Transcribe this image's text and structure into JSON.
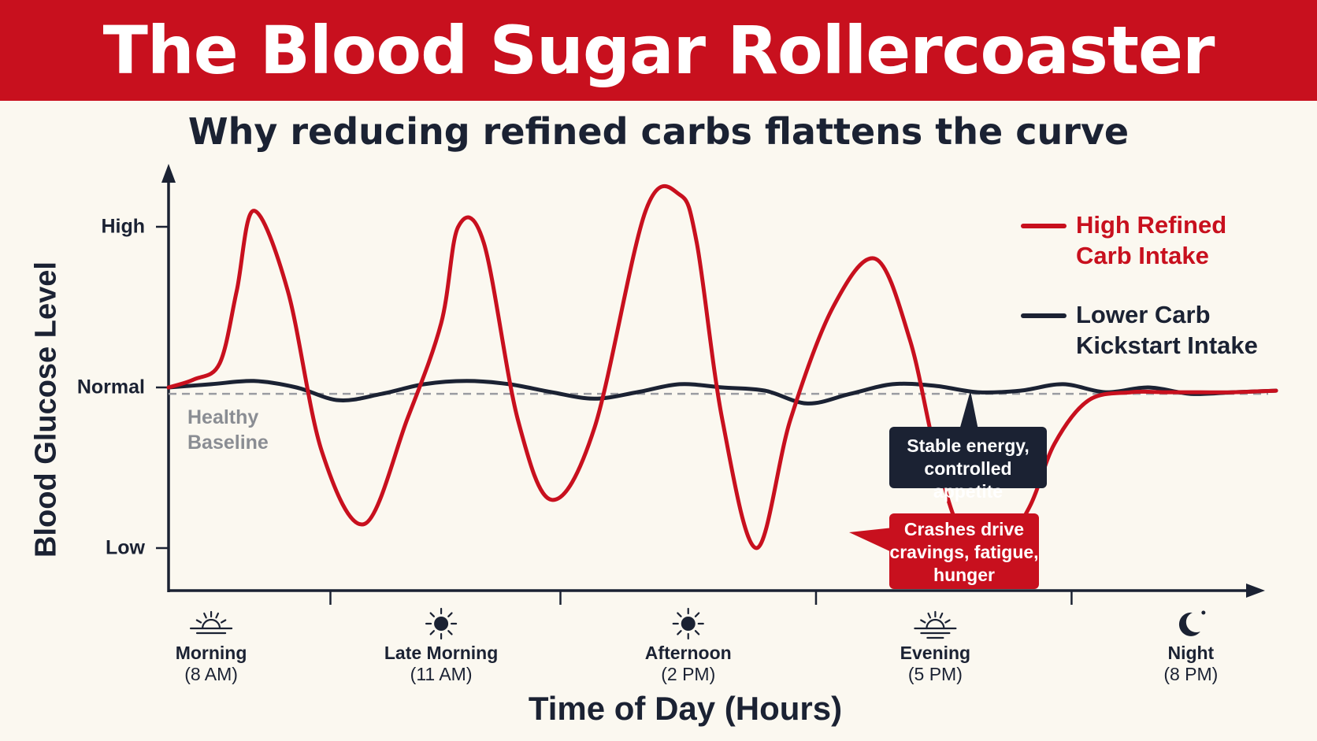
{
  "header": {
    "title": "The Blood Sugar Rollercoaster"
  },
  "subtitle": "Why reducing refined carbs flattens the curve",
  "chart_data": {
    "type": "line",
    "xlabel": "Time of Day (Hours)",
    "ylabel": "Blood Glucose Level",
    "xlim": [
      8,
      21
    ],
    "ylim": [
      -1.3,
      1.3
    ],
    "yticks": [
      {
        "value": 1,
        "label": "High"
      },
      {
        "value": 0,
        "label": "Normal"
      },
      {
        "value": -1,
        "label": "Low"
      }
    ],
    "xticks": [
      {
        "value": 8.5,
        "name": "Morning",
        "time": "(8 AM)",
        "icon": "sunrise-icon"
      },
      {
        "value": 11.2,
        "name": "Late Morning",
        "time": "(11 AM)",
        "icon": "sun-icon"
      },
      {
        "value": 14.1,
        "name": "Afternoon",
        "time": "(2 PM)",
        "icon": "sun-icon"
      },
      {
        "value": 17.0,
        "name": "Evening",
        "time": "(5 PM)",
        "icon": "sunset-icon"
      },
      {
        "value": 20.0,
        "name": "Night",
        "time": "(8 PM)",
        "icon": "moon-icon"
      }
    ],
    "minor_ticks": [
      9.9,
      12.6,
      15.6,
      18.6
    ],
    "baseline": {
      "value": -0.04,
      "label": "Healthy Baseline"
    },
    "series": [
      {
        "name": "High Refined Carb Intake",
        "color": "#c8101e",
        "x": [
          8.0,
          8.3,
          8.6,
          8.8,
          9.0,
          9.4,
          9.8,
          10.3,
          10.8,
          11.2,
          11.4,
          11.7,
          12.1,
          12.5,
          13.0,
          13.6,
          14.0,
          14.2,
          14.5,
          14.9,
          15.3,
          15.8,
          16.3,
          16.7,
          17.0,
          17.3,
          17.7,
          18.1,
          18.4,
          18.8,
          19.3,
          19.7,
          20.1,
          20.5,
          21.0
        ],
        "values": [
          0.0,
          0.05,
          0.15,
          0.6,
          1.1,
          0.6,
          -0.4,
          -0.85,
          -0.2,
          0.4,
          1.0,
          0.9,
          -0.2,
          -0.7,
          -0.25,
          1.1,
          1.2,
          0.9,
          -0.2,
          -1.0,
          -0.2,
          0.5,
          0.8,
          0.3,
          -0.4,
          -0.9,
          -1.05,
          -0.75,
          -0.35,
          -0.08,
          -0.03,
          -0.03,
          -0.03,
          -0.03,
          -0.02
        ],
        "note": "approximate curve trace"
      },
      {
        "name": "Lower Carb Kickstart Intake",
        "color": "#1b2233",
        "x": [
          8.0,
          8.5,
          9.0,
          9.5,
          10.0,
          10.5,
          11.0,
          11.5,
          12.0,
          12.5,
          13.0,
          13.5,
          14.0,
          14.5,
          15.0,
          15.5,
          16.0,
          16.5,
          17.0,
          17.5,
          18.0,
          18.5,
          19.0,
          19.5,
          20.0,
          20.5,
          21.0
        ],
        "values": [
          0.0,
          0.02,
          0.04,
          0.0,
          -0.08,
          -0.04,
          0.02,
          0.04,
          0.02,
          -0.03,
          -0.07,
          -0.03,
          0.02,
          0.0,
          -0.02,
          -0.1,
          -0.04,
          0.02,
          0.01,
          -0.03,
          -0.02,
          0.02,
          -0.03,
          0.0,
          -0.04,
          -0.03,
          -0.02
        ]
      }
    ],
    "legend": {
      "position": "top-right"
    },
    "annotations": [
      {
        "text": "Stable energy, controlled appetite",
        "target_series": "Lower Carb Kickstart Intake"
      },
      {
        "text": "Crashes drive cravings, fatigue, hunger",
        "target_series": "High Refined Carb Intake"
      }
    ]
  },
  "legend_labels": [
    "High Refined Carb Intake",
    "Lower Carb Kickstart Intake"
  ],
  "callouts": {
    "stable": {
      "line1": "Stable energy,",
      "line2": "controlled appetite"
    },
    "crash": {
      "line1": "Crashes drive",
      "line2": "cravings, fatigue,",
      "line3": "hunger"
    }
  },
  "baseline_text": {
    "line1": "Healthy",
    "line2": "Baseline"
  },
  "legend_text": {
    "high": {
      "line1": "High Refined",
      "line2": "Carb Intake"
    },
    "low": {
      "line1": "Lower Carb",
      "line2": "Kickstart Intake"
    }
  }
}
